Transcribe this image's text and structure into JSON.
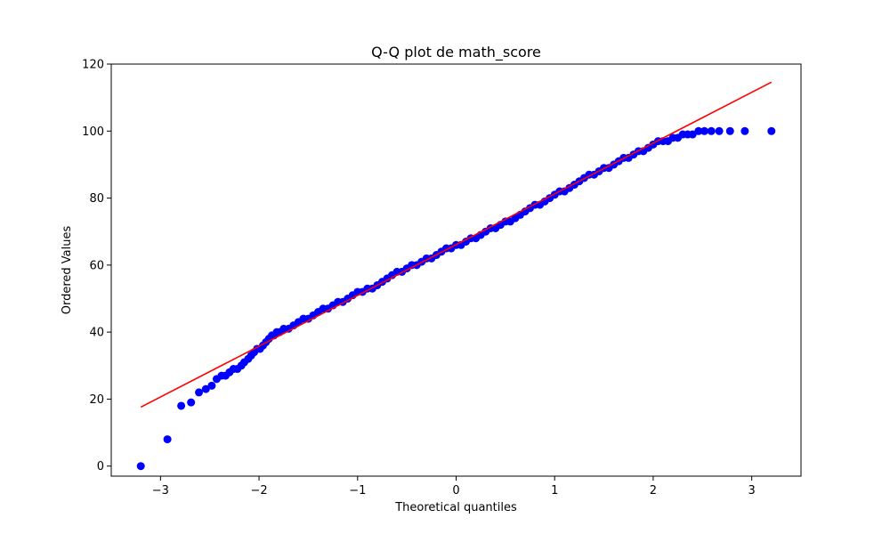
{
  "chart_data": {
    "type": "scatter",
    "title": "Q-Q plot de math_score",
    "xlabel": "Theoretical quantiles",
    "ylabel": "Ordered Values",
    "xlim": [
      -3.5,
      3.5
    ],
    "ylim": [
      -3,
      120
    ],
    "xticks": [
      -3,
      -2,
      -1,
      0,
      1,
      2,
      3
    ],
    "xtick_labels": [
      "−3",
      "−2",
      "−1",
      "0",
      "1",
      "2",
      "3"
    ],
    "yticks": [
      0,
      20,
      40,
      60,
      80,
      100,
      120
    ],
    "ytick_labels": [
      "0",
      "20",
      "40",
      "60",
      "80",
      "100",
      "120"
    ],
    "grid": false,
    "legend": "none",
    "colors": {
      "points": "#0000ff",
      "line": "#ff0000"
    },
    "fit_line": {
      "x": [
        -3.2,
        3.2
      ],
      "y": [
        17.6,
        114.6
      ]
    },
    "series": [
      {
        "x": [
          -3.2,
          -2.93,
          -2.79,
          -2.69,
          -2.61,
          -2.54,
          -2.48,
          -2.43,
          -2.38,
          -2.34,
          -2.3,
          -2.26,
          -2.22,
          -2.18,
          -2.15,
          -2.11,
          -2.08,
          -2.05,
          -2.02,
          -1.99,
          -1.96,
          -1.93,
          -1.9,
          -1.87,
          -1.85,
          -1.82,
          -1.79,
          -1.75,
          -1.7,
          -1.65,
          -1.6,
          -1.55,
          -1.5,
          -1.45,
          -1.4,
          -1.35,
          -1.3,
          -1.25,
          -1.2,
          -1.15,
          -1.1,
          -1.05,
          -1.0,
          -0.95,
          -0.9,
          -0.85,
          -0.8,
          -0.75,
          -0.7,
          -0.65,
          -0.6,
          -0.55,
          -0.5,
          -0.45,
          -0.4,
          -0.35,
          -0.3,
          -0.25,
          -0.2,
          -0.15,
          -0.1,
          -0.05,
          0.0,
          0.05,
          0.1,
          0.15,
          0.2,
          0.25,
          0.3,
          0.35,
          0.4,
          0.45,
          0.5,
          0.55,
          0.6,
          0.65,
          0.7,
          0.75,
          0.8,
          0.85,
          0.9,
          0.95,
          1.0,
          1.05,
          1.1,
          1.15,
          1.2,
          1.25,
          1.3,
          1.35,
          1.4,
          1.45,
          1.5,
          1.55,
          1.6,
          1.65,
          1.7,
          1.75,
          1.8,
          1.85,
          1.9,
          1.95,
          2.0,
          2.05,
          2.1,
          2.15,
          2.2,
          2.25,
          2.3,
          2.35,
          2.4,
          2.46,
          2.52,
          2.59,
          2.67,
          2.78,
          2.93,
          3.2
        ],
        "y": [
          0,
          8,
          18,
          19,
          22,
          23,
          24,
          26,
          27,
          27,
          28,
          29,
          29,
          30,
          31,
          32,
          33,
          34,
          35,
          35,
          36,
          37,
          38,
          39,
          39,
          40,
          40,
          41,
          41,
          42,
          43,
          44,
          44,
          45,
          46,
          47,
          47,
          48,
          49,
          49,
          50,
          51,
          52,
          52,
          53,
          53,
          54,
          55,
          56,
          57,
          58,
          58,
          59,
          60,
          60,
          61,
          62,
          62,
          63,
          64,
          65,
          65,
          66,
          66,
          67,
          68,
          68,
          69,
          70,
          71,
          71,
          72,
          73,
          73,
          74,
          75,
          76,
          77,
          78,
          78,
          79,
          80,
          81,
          82,
          82,
          83,
          84,
          85,
          86,
          87,
          87,
          88,
          89,
          89,
          90,
          91,
          92,
          92,
          93,
          94,
          94,
          95,
          96,
          97,
          97,
          97,
          98,
          98,
          99,
          99,
          99,
          100,
          100,
          100,
          100,
          100,
          100,
          100
        ]
      }
    ]
  }
}
